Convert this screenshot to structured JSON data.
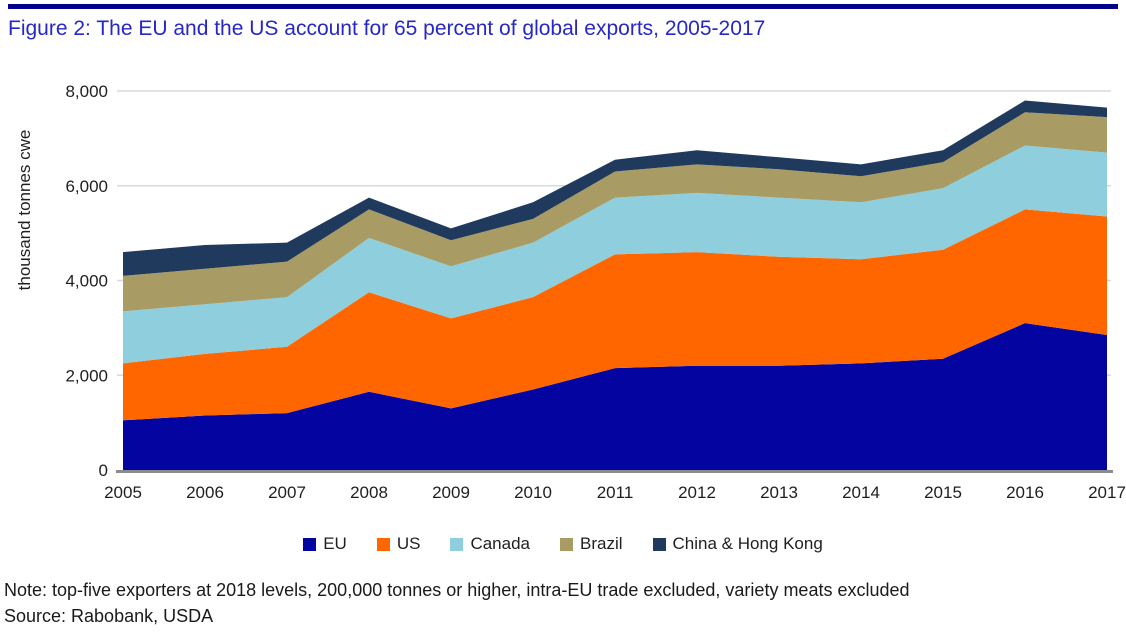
{
  "page": {
    "title": "Figure 2: The EU and the US account for 65 percent of global exports, 2005-2017",
    "title_color": "#2727C8",
    "top_border_color": "#00008B",
    "note": "Note: top-five exporters at 2018 levels, 200,000 tonnes or higher, intra-EU trade excluded, variety meats excluded",
    "source": "Source: Rabobank, USDA"
  },
  "chart_data": {
    "type": "area",
    "stacked": true,
    "title": "Figure 2: The EU and the US account for 65 percent of global exports, 2005-2017",
    "xlabel": "",
    "ylabel": "thousand tonnes cwe",
    "ylim": [
      0,
      8000
    ],
    "ytick_values": [
      0,
      2000,
      4000,
      6000,
      8000
    ],
    "ytick_labels": [
      "0",
      "2,000",
      "4,000",
      "6,000",
      "8,000"
    ],
    "grid": "horizontal",
    "gridline_color": "#D9D9D9",
    "axis_line_color": "#8C8C8C",
    "legend_position": "bottom",
    "categories": [
      2005,
      2006,
      2007,
      2008,
      2009,
      2010,
      2011,
      2012,
      2013,
      2014,
      2015,
      2016,
      2017
    ],
    "series": [
      {
        "name": "EU",
        "color": "#0404A0",
        "values": [
          1050,
          1150,
          1200,
          1650,
          1300,
          1700,
          2150,
          2200,
          2200,
          2250,
          2350,
          3100,
          2850
        ]
      },
      {
        "name": "US",
        "color": "#FF6600",
        "values": [
          1200,
          1300,
          1400,
          2100,
          1900,
          1950,
          2400,
          2400,
          2300,
          2200,
          2300,
          2400,
          2500
        ]
      },
      {
        "name": "Canada",
        "color": "#8FCEDD",
        "values": [
          1100,
          1050,
          1050,
          1150,
          1100,
          1150,
          1200,
          1250,
          1250,
          1200,
          1300,
          1350,
          1350
        ]
      },
      {
        "name": "Brazil",
        "color": "#A89B64",
        "values": [
          750,
          750,
          750,
          600,
          550,
          500,
          550,
          600,
          600,
          550,
          550,
          700,
          750
        ]
      },
      {
        "name": "China & Hong Kong",
        "color": "#1F3A5C",
        "values": [
          500,
          500,
          400,
          250,
          250,
          350,
          250,
          300,
          250,
          250,
          250,
          250,
          200
        ]
      }
    ]
  }
}
